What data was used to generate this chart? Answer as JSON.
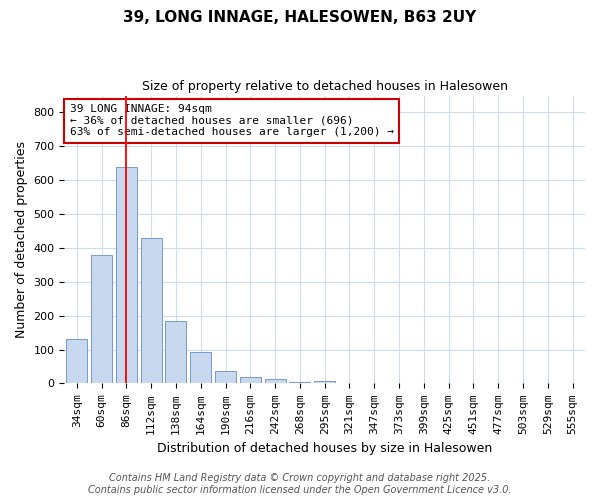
{
  "title1": "39, LONG INNAGE, HALESOWEN, B63 2UY",
  "title2": "Size of property relative to detached houses in Halesowen",
  "xlabel": "Distribution of detached houses by size in Halesowen",
  "ylabel": "Number of detached properties",
  "categories": [
    "34sqm",
    "60sqm",
    "86sqm",
    "112sqm",
    "138sqm",
    "164sqm",
    "190sqm",
    "216sqm",
    "242sqm",
    "268sqm",
    "295sqm",
    "321sqm",
    "347sqm",
    "373sqm",
    "399sqm",
    "425sqm",
    "451sqm",
    "477sqm",
    "503sqm",
    "529sqm",
    "555sqm"
  ],
  "values": [
    130,
    380,
    640,
    430,
    185,
    93,
    38,
    18,
    12,
    3,
    8,
    0,
    0,
    0,
    0,
    0,
    0,
    0,
    0,
    0,
    0
  ],
  "bar_color": "#c8d8ee",
  "bar_edge_color": "#7799cc",
  "red_line_index": 2.5,
  "ylim": [
    0,
    850
  ],
  "yticks": [
    0,
    100,
    200,
    300,
    400,
    500,
    600,
    700,
    800
  ],
  "annotation_text": "39 LONG INNAGE: 94sqm\n← 36% of detached houses are smaller (696)\n63% of semi-detached houses are larger (1,200) →",
  "annotation_box_color": "#ffffff",
  "annotation_box_edge": "#cc0000",
  "footer1": "Contains HM Land Registry data © Crown copyright and database right 2025.",
  "footer2": "Contains public sector information licensed under the Open Government Licence v3.0.",
  "background_color": "#ffffff",
  "plot_bg_color": "#ffffff",
  "grid_color": "#ccddee",
  "title1_fontsize": 11,
  "title2_fontsize": 9,
  "xlabel_fontsize": 9,
  "ylabel_fontsize": 9,
  "tick_fontsize": 8,
  "annotation_fontsize": 8,
  "footer_fontsize": 7
}
